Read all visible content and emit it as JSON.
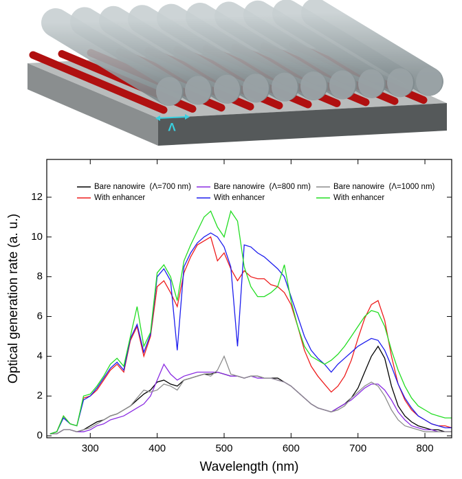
{
  "illustration": {
    "period_label": "Λ"
  },
  "chart_data": {
    "type": "line",
    "x_label": "Wavelength (nm)",
    "y_label": "Optical generation rate (a. u.)",
    "xlim": [
      235,
      840
    ],
    "ylim": [
      -0.1,
      13.9
    ],
    "xticks": [
      300,
      400,
      500,
      600,
      700,
      800
    ],
    "yticks": [
      0,
      2,
      4,
      6,
      8,
      10,
      12
    ],
    "x": [
      240,
      250,
      260,
      270,
      280,
      290,
      300,
      310,
      320,
      330,
      340,
      350,
      360,
      370,
      380,
      390,
      400,
      410,
      420,
      430,
      440,
      450,
      460,
      470,
      480,
      490,
      500,
      510,
      520,
      530,
      540,
      550,
      560,
      570,
      580,
      590,
      600,
      610,
      620,
      630,
      640,
      650,
      660,
      670,
      680,
      690,
      700,
      710,
      720,
      730,
      740,
      750,
      760,
      770,
      780,
      790,
      800,
      810,
      820,
      830,
      840
    ],
    "series": [
      {
        "name": "Bare nanowire  (Λ=700 nm)",
        "color": "#000000",
        "values": [
          0.1,
          0.1,
          0.3,
          0.3,
          0.2,
          0.3,
          0.5,
          0.7,
          0.8,
          1.0,
          1.1,
          1.3,
          1.5,
          1.8,
          2.1,
          2.3,
          2.7,
          2.8,
          2.6,
          2.5,
          2.8,
          2.9,
          3.0,
          3.1,
          3.1,
          3.2,
          3.1,
          3.0,
          3.0,
          2.9,
          3.0,
          3.0,
          2.9,
          2.9,
          2.9,
          2.7,
          2.5,
          2.2,
          1.9,
          1.6,
          1.4,
          1.3,
          1.2,
          1.4,
          1.6,
          1.9,
          2.4,
          3.2,
          4.0,
          4.5,
          3.9,
          2.5,
          1.5,
          1.0,
          0.7,
          0.5,
          0.4,
          0.3,
          0.3,
          0.2,
          0.2
        ]
      },
      {
        "name": "With enhancer",
        "color": "#ee1c1c",
        "values": [
          0.1,
          0.2,
          1.0,
          0.6,
          0.5,
          1.9,
          2.0,
          2.3,
          2.8,
          3.3,
          3.6,
          3.2,
          4.8,
          5.5,
          4.0,
          5.0,
          7.5,
          7.8,
          7.2,
          6.5,
          8.2,
          9.0,
          9.6,
          9.8,
          10.0,
          8.8,
          9.2,
          8.4,
          7.8,
          8.3,
          8.0,
          7.9,
          7.9,
          7.6,
          7.5,
          7.2,
          6.6,
          5.5,
          4.3,
          3.5,
          3.0,
          2.6,
          2.2,
          2.5,
          3.0,
          3.8,
          4.9,
          5.9,
          6.6,
          6.8,
          5.8,
          4.0,
          2.6,
          1.8,
          1.3,
          1.0,
          0.8,
          0.6,
          0.5,
          0.5,
          0.4
        ]
      },
      {
        "name": "Bare nanowire  (Λ=800 nm)",
        "color": "#8a2be2",
        "values": [
          0.1,
          0.1,
          0.3,
          0.3,
          0.2,
          0.2,
          0.3,
          0.5,
          0.6,
          0.8,
          0.9,
          1.0,
          1.2,
          1.4,
          1.6,
          2.0,
          2.8,
          3.6,
          3.1,
          2.8,
          3.0,
          3.1,
          3.2,
          3.2,
          3.2,
          3.2,
          3.1,
          3.0,
          3.0,
          2.9,
          3.0,
          2.9,
          2.9,
          2.9,
          2.8,
          2.7,
          2.5,
          2.2,
          1.9,
          1.6,
          1.4,
          1.3,
          1.2,
          1.4,
          1.6,
          1.8,
          2.1,
          2.4,
          2.6,
          2.6,
          2.3,
          1.8,
          1.2,
          0.8,
          0.5,
          0.4,
          0.3,
          0.3,
          0.2,
          0.2,
          0.2
        ]
      },
      {
        "name": "With enhancer",
        "color": "#1c1cee",
        "values": [
          0.1,
          0.2,
          0.9,
          0.6,
          0.5,
          1.8,
          2.0,
          2.4,
          2.9,
          3.4,
          3.7,
          3.3,
          4.9,
          5.6,
          4.2,
          5.1,
          8.0,
          8.4,
          7.8,
          4.3,
          8.5,
          9.2,
          9.7,
          10.0,
          10.2,
          10.0,
          9.5,
          8.5,
          4.5,
          9.6,
          9.5,
          9.2,
          9.0,
          8.7,
          8.4,
          8.0,
          7.0,
          6.0,
          5.0,
          4.3,
          3.9,
          3.6,
          3.2,
          3.6,
          3.9,
          4.2,
          4.5,
          4.7,
          4.9,
          4.8,
          4.3,
          3.5,
          2.6,
          1.9,
          1.4,
          1.0,
          0.8,
          0.6,
          0.5,
          0.4,
          0.4
        ]
      },
      {
        "name": "Bare nanowire  (Λ=1000 nm)",
        "color": "#8c8c8c",
        "values": [
          0.1,
          0.1,
          0.3,
          0.3,
          0.2,
          0.3,
          0.4,
          0.6,
          0.8,
          1.0,
          1.1,
          1.3,
          1.5,
          1.9,
          2.3,
          2.2,
          2.3,
          2.6,
          2.5,
          2.3,
          2.8,
          2.9,
          3.0,
          3.1,
          3.0,
          3.3,
          4.0,
          3.1,
          3.0,
          2.9,
          3.0,
          3.0,
          2.9,
          2.9,
          2.8,
          2.7,
          2.5,
          2.2,
          1.9,
          1.6,
          1.4,
          1.3,
          1.2,
          1.3,
          1.5,
          1.9,
          2.2,
          2.5,
          2.7,
          2.5,
          2.0,
          1.3,
          0.8,
          0.5,
          0.4,
          0.3,
          0.2,
          0.2,
          0.2,
          0.2,
          0.2
        ]
      },
      {
        "name": "With enhancer",
        "color": "#22dd22",
        "values": [
          0.1,
          0.2,
          1.0,
          0.6,
          0.5,
          2.0,
          2.1,
          2.5,
          3.0,
          3.6,
          3.9,
          3.5,
          5.0,
          6.5,
          4.5,
          5.2,
          8.2,
          8.6,
          8.0,
          6.8,
          8.8,
          9.6,
          10.3,
          11.0,
          11.3,
          10.5,
          10.0,
          11.3,
          10.8,
          8.5,
          7.5,
          7.0,
          7.0,
          7.2,
          7.5,
          8.6,
          6.8,
          5.5,
          4.5,
          4.0,
          3.8,
          3.6,
          3.8,
          4.1,
          4.5,
          5.0,
          5.5,
          6.0,
          6.3,
          6.2,
          5.5,
          4.3,
          3.3,
          2.5,
          1.9,
          1.5,
          1.3,
          1.1,
          1.0,
          0.9,
          0.9
        ]
      }
    ]
  }
}
